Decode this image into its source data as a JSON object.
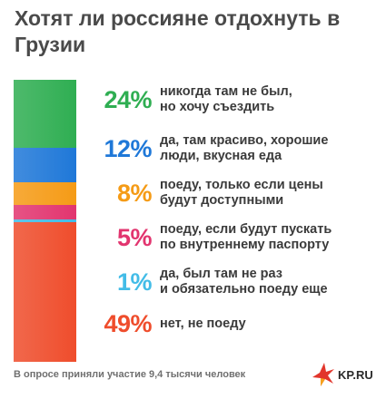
{
  "header": {
    "title": "Хотят ли россияне отдохнуть в Грузии"
  },
  "chart_data": {
    "type": "bar",
    "stacked": true,
    "orientation": "vertical-single-stack",
    "categories": [
      "никогда там не был,\nно хочу съездить",
      "да, там красиво, хорошие\nлюди, вкусная еда",
      "поеду, только если цены\nбудут доступными",
      "поеду, если будут пускать\nпо внутреннему паспорту",
      "да, был там не раз\nи обязательно поеду еще",
      "нет, не поеду"
    ],
    "values": [
      24,
      12,
      8,
      5,
      1,
      49
    ],
    "value_labels": [
      "24%",
      "12%",
      "8%",
      "5%",
      "1%",
      "49%"
    ],
    "colors": [
      "#2fae52",
      "#1f78d8",
      "#f59b16",
      "#e2356f",
      "#43bce7",
      "#ef4d2c"
    ],
    "unit": "%"
  },
  "footer": {
    "note": "В опросе приняли участие 9,4 тысячи человек"
  },
  "logo": {
    "text": "KP.RU",
    "icon": "kp-star-icon"
  }
}
